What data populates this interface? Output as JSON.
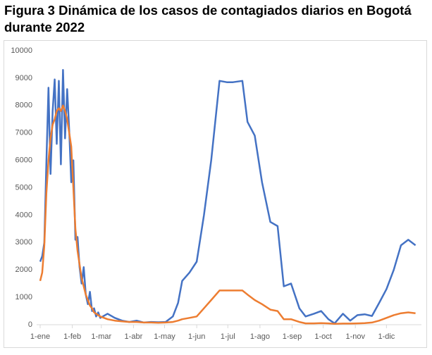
{
  "chart_data": {
    "type": "line",
    "title": "Figura 3 Dinámica de los casos de contagiados diarios en Bogotá durante 2022",
    "x": [
      0,
      2,
      4,
      6,
      8,
      10,
      12,
      14,
      16,
      18,
      20,
      22,
      24,
      26,
      28,
      30,
      32,
      34,
      36,
      38,
      40,
      42,
      44,
      46,
      48,
      50,
      52,
      54,
      56,
      58,
      65,
      72,
      79,
      86,
      93,
      100,
      107,
      114,
      121,
      128,
      133,
      137,
      144,
      151,
      158,
      165,
      173,
      180,
      186,
      195,
      200,
      207,
      214,
      222,
      229,
      235,
      242,
      250,
      256,
      264,
      271,
      278,
      284,
      292,
      299,
      306,
      313,
      320,
      327,
      334,
      341,
      348,
      355,
      362
    ],
    "series": [
      {
        "color": "#4472c4",
        "values": [
          2300,
          2500,
          3000,
          5900,
          8650,
          5500,
          7800,
          8950,
          6600,
          8900,
          5850,
          9300,
          6800,
          8600,
          7100,
          5200,
          6000,
          3100,
          3200,
          2100,
          1500,
          2100,
          1100,
          750,
          1200,
          500,
          600,
          300,
          450,
          250,
          400,
          250,
          150,
          100,
          150,
          80,
          100,
          90,
          100,
          300,
          800,
          1600,
          1900,
          2300,
          4000,
          6000,
          8900,
          8850,
          8850,
          8900,
          7400,
          6900,
          5200,
          3750,
          3600,
          1400,
          1500,
          600,
          300,
          400,
          500,
          200,
          50,
          400,
          150,
          350,
          380,
          320,
          800,
          1300,
          2000,
          2900,
          3100,
          2900
        ]
      },
      {
        "color": "#ed7d31",
        "values": [
          1600,
          1900,
          2900,
          4800,
          6000,
          6800,
          7300,
          7500,
          7800,
          7900,
          7800,
          8000,
          7800,
          7500,
          7000,
          6500,
          5000,
          3500,
          2700,
          2200,
          1700,
          1400,
          1100,
          900,
          700,
          600,
          450,
          400,
          350,
          300,
          200,
          150,
          120,
          100,
          100,
          80,
          80,
          70,
          80,
          100,
          150,
          200,
          250,
          300,
          600,
          900,
          1250,
          1250,
          1250,
          1250,
          1100,
          900,
          750,
          550,
          500,
          200,
          200,
          100,
          50,
          50,
          60,
          50,
          30,
          40,
          40,
          50,
          60,
          80,
          150,
          250,
          350,
          420,
          450,
          420
        ]
      }
    ],
    "xlim": [
      0,
      364
    ],
    "xticks": [
      {
        "value": 0,
        "label": "1-ene"
      },
      {
        "value": 31,
        "label": "1-feb"
      },
      {
        "value": 59,
        "label": "1-mar"
      },
      {
        "value": 90,
        "label": "1-abr"
      },
      {
        "value": 120,
        "label": "1-may"
      },
      {
        "value": 151,
        "label": "1-jun"
      },
      {
        "value": 181,
        "label": "1-jul"
      },
      {
        "value": 212,
        "label": "1-ago"
      },
      {
        "value": 243,
        "label": "1-sep"
      },
      {
        "value": 273,
        "label": "1-oct"
      },
      {
        "value": 304,
        "label": "1-nov"
      },
      {
        "value": 334,
        "label": "1-dic"
      }
    ],
    "ylim": [
      0,
      10000
    ],
    "yticks": [
      0,
      1000,
      2000,
      3000,
      4000,
      5000,
      6000,
      7000,
      8000,
      9000,
      10000
    ]
  }
}
